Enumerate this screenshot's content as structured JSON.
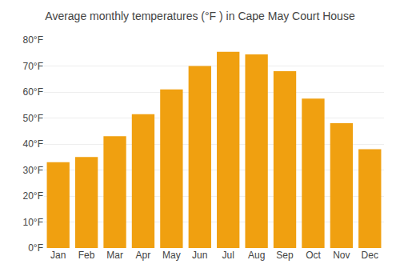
{
  "chart_data": {
    "type": "bar",
    "title": "Average monthly temperatures (°F ) in Cape May Court House",
    "categories": [
      "Jan",
      "Feb",
      "Mar",
      "Apr",
      "May",
      "Jun",
      "Jul",
      "Aug",
      "Sep",
      "Oct",
      "Nov",
      "Dec"
    ],
    "values": [
      33,
      35,
      43,
      51.5,
      61,
      70,
      75.5,
      74.5,
      68,
      57.5,
      48,
      38
    ],
    "color": "#F0A010",
    "ylim": [
      0,
      80
    ],
    "yticks": [
      {
        "value": 0,
        "label": "0°F"
      },
      {
        "value": 10,
        "label": "10°F"
      },
      {
        "value": 20,
        "label": "20°F"
      },
      {
        "value": 30,
        "label": "30°F"
      },
      {
        "value": 40,
        "label": "40°F"
      },
      {
        "value": 50,
        "label": "50°F"
      },
      {
        "value": 60,
        "label": "60°F"
      },
      {
        "value": 70,
        "label": "70°F"
      },
      {
        "value": 80,
        "label": "80°F"
      }
    ],
    "grid": true
  }
}
